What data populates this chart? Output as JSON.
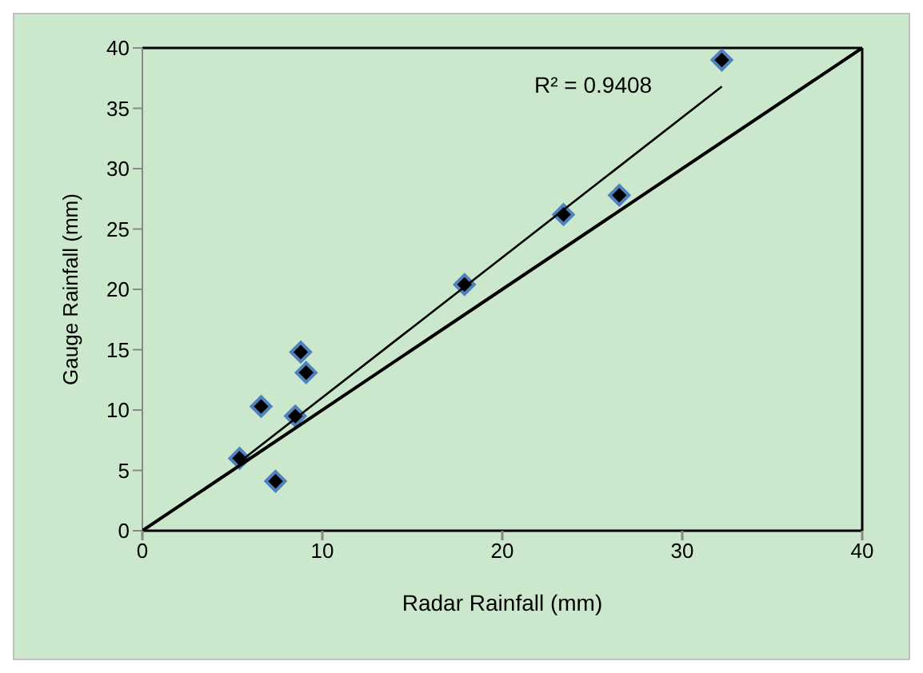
{
  "chart_data": {
    "type": "scatter",
    "xlabel": "Radar Rainfall (mm)",
    "ylabel": "Gauge Rainfall (mm)",
    "xlim": [
      0,
      40
    ],
    "xticks": [
      0,
      10,
      20,
      30,
      40
    ],
    "ylim": [
      0,
      40
    ],
    "yticks": [
      0,
      5,
      10,
      15,
      20,
      25,
      30,
      35,
      40
    ],
    "legend": false,
    "marker": "diamond",
    "annotations": [
      "R² = 0.9408"
    ],
    "series": [
      {
        "color": "#000000",
        "x": [
          5.4,
          7.4,
          6.6,
          8.5,
          8.8,
          9.1,
          17.9,
          23.4,
          26.5,
          32.2
        ],
        "values": [
          6.0,
          4.1,
          10.3,
          9.5,
          14.8,
          13.1,
          20.4,
          26.2,
          27.8,
          39.0
        ]
      },
      {
        "type": "line",
        "color": "#000000",
        "marker": "none",
        "x": [
          5.4,
          32.2
        ],
        "values": [
          5.7,
          36.8
        ]
      },
      {
        "type": "line",
        "color": "#000000",
        "marker": "none",
        "x": [
          0,
          40
        ],
        "values": [
          0,
          40
        ]
      }
    ]
  }
}
